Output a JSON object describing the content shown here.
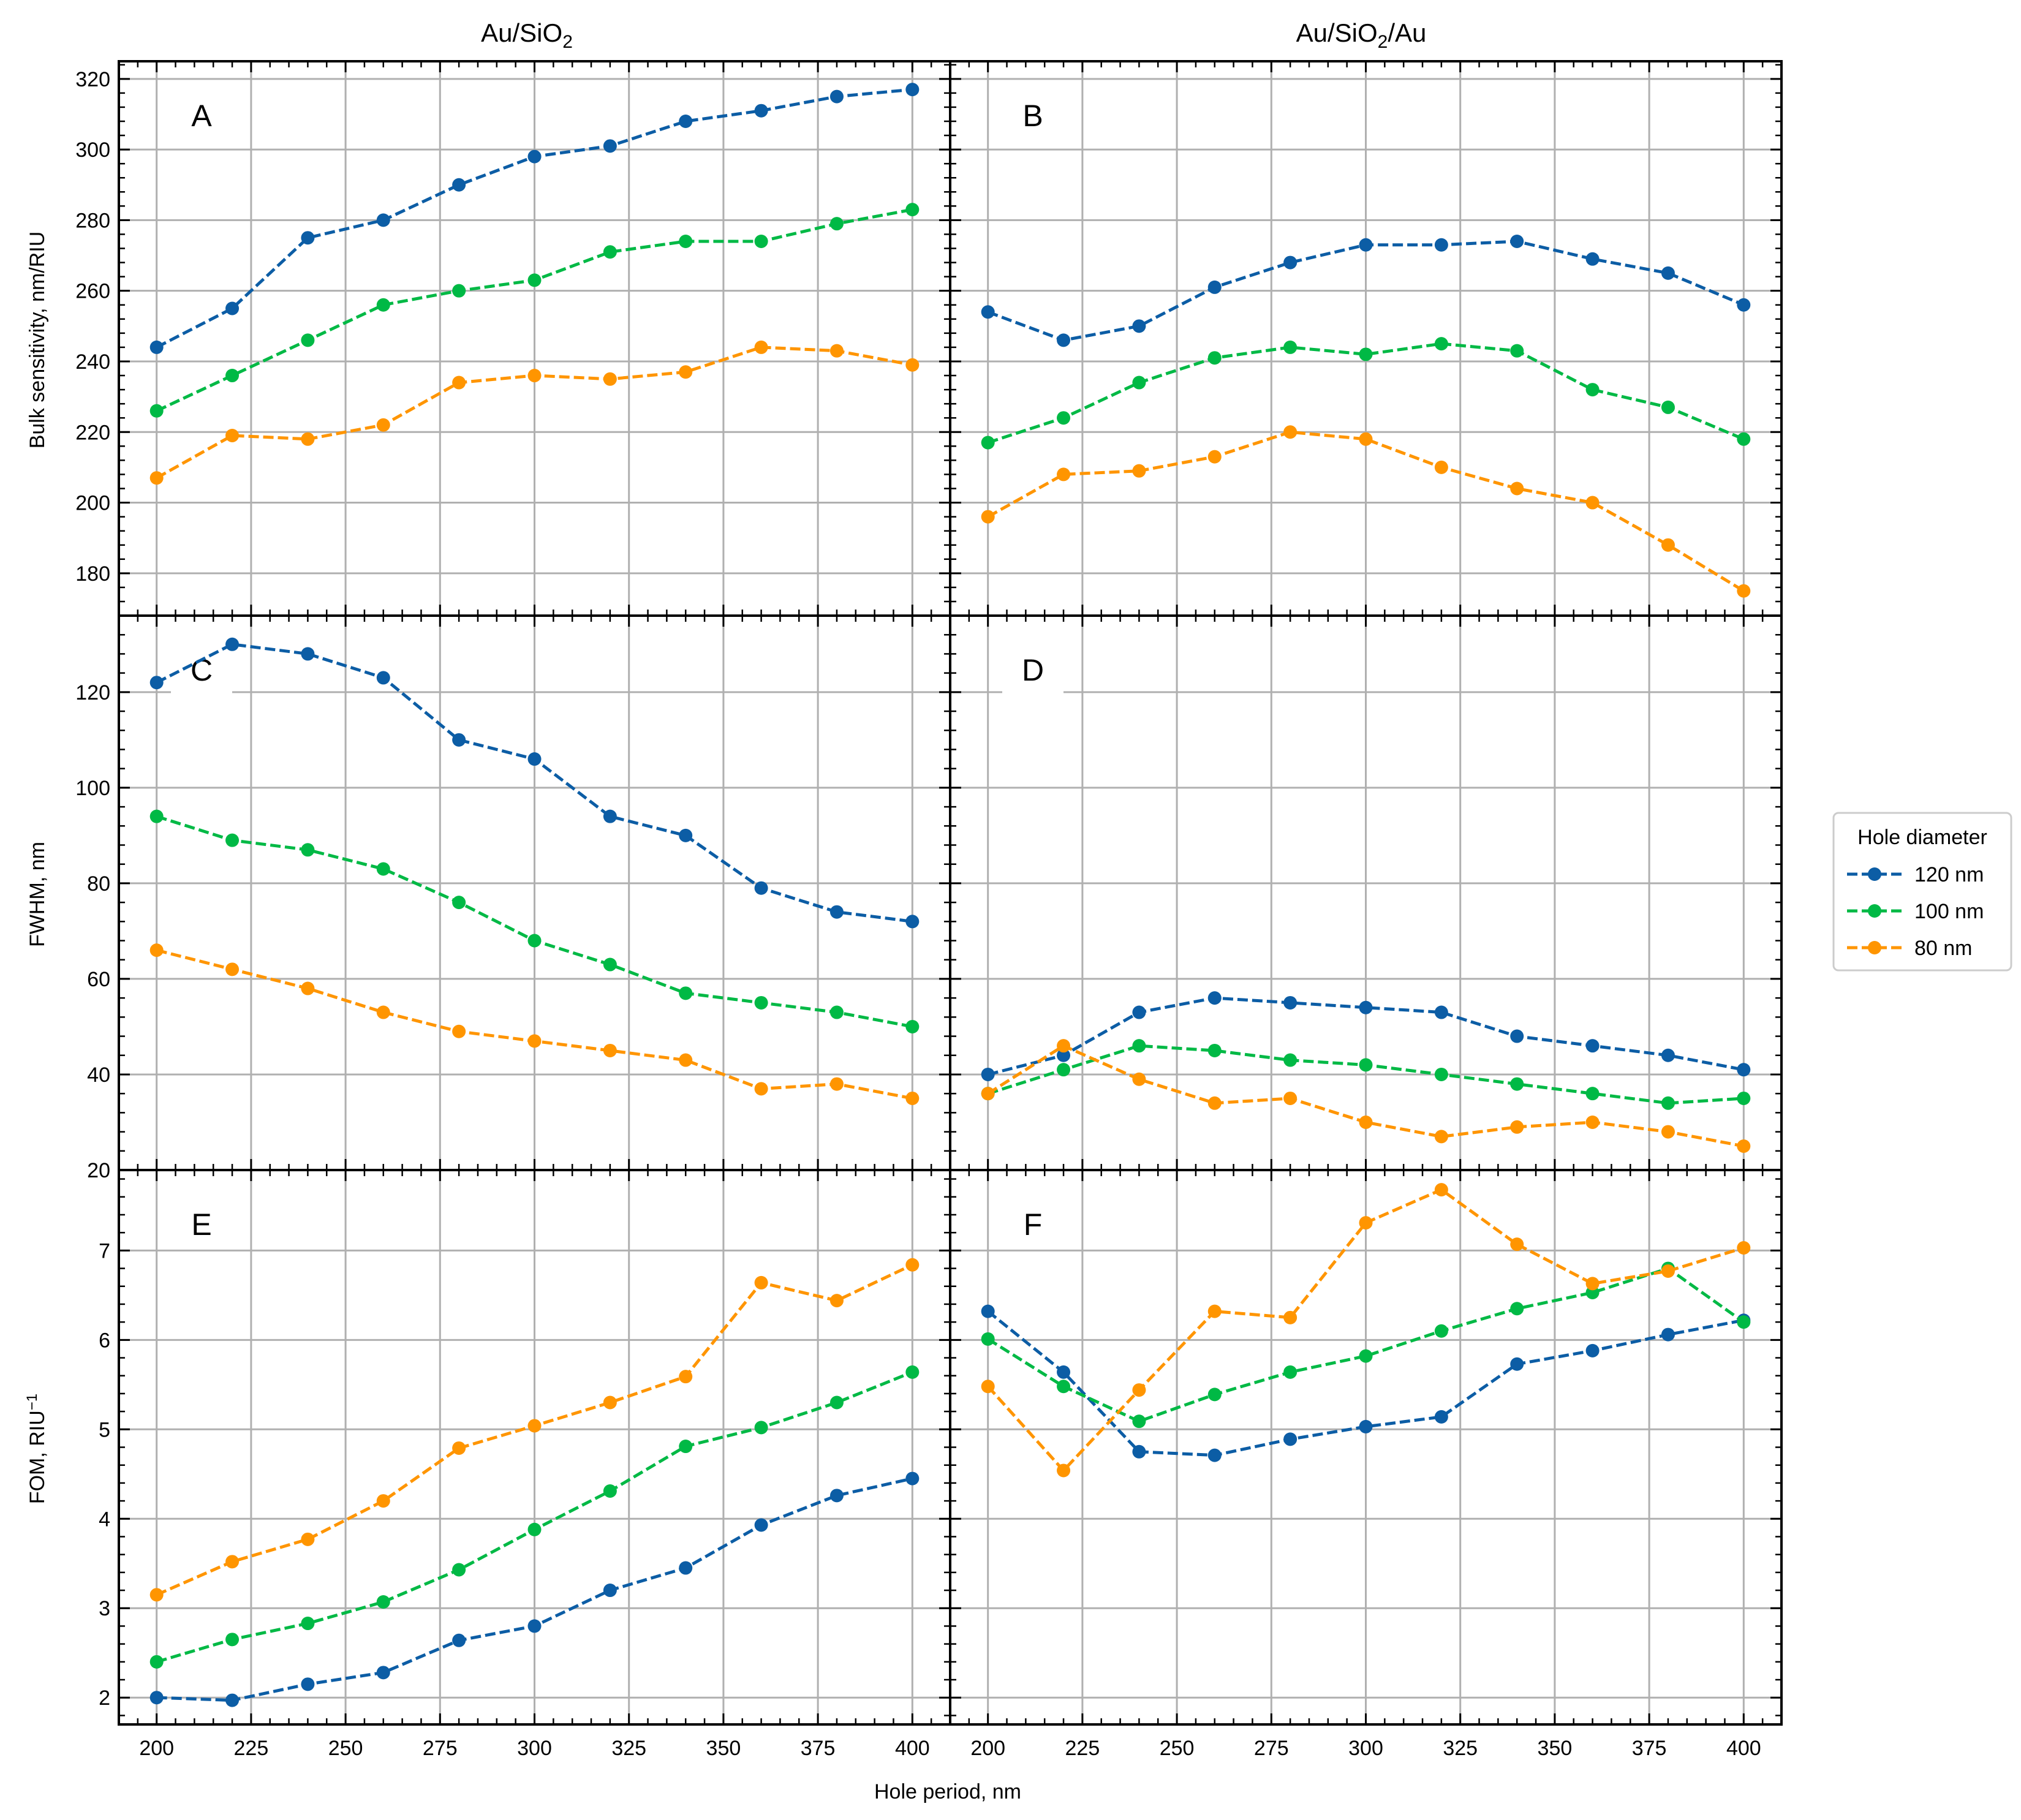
{
  "figure": {
    "xlabel": "Hole period, nm",
    "column_titles": [
      {
        "base": "Au/SiO",
        "sub": "2",
        "tail": ""
      },
      {
        "base": "Au/SiO",
        "sub": "2",
        "tail": "/Au"
      }
    ],
    "row_labels": [
      {
        "base": "Bulk sensitivity, nm/RIU",
        "sup": ""
      },
      {
        "base": "FWHM, nm",
        "sup": ""
      },
      {
        "base": "FOM, RIU",
        "sup": "−1"
      }
    ],
    "legend": {
      "title": "Hole diameter",
      "entries": [
        "120 nm",
        "100 nm",
        "80 nm"
      ],
      "colors": [
        "#0C5DA5",
        "#00B945",
        "#FF9500"
      ]
    }
  },
  "chart_data": [
    {
      "type": "line",
      "panel": "A",
      "title": "Au/SiO2",
      "xlabel": "",
      "ylabel": "Bulk sensitivity, nm/RIU",
      "x": [
        200,
        220,
        240,
        260,
        280,
        300,
        320,
        340,
        360,
        380,
        400
      ],
      "xlim": [
        190,
        410
      ],
      "xticks": [
        200,
        225,
        250,
        275,
        300,
        325,
        350,
        375,
        400
      ],
      "ylim": [
        168,
        325
      ],
      "yticks": [
        180,
        200,
        220,
        240,
        260,
        280,
        300,
        320
      ],
      "grid": true,
      "series": [
        {
          "name": "120 nm",
          "values": [
            244,
            255,
            275,
            280,
            290,
            298,
            301,
            308,
            311,
            315,
            317
          ]
        },
        {
          "name": "100 nm",
          "values": [
            226,
            236,
            246,
            256,
            260,
            263,
            271,
            274,
            274,
            279,
            283
          ]
        },
        {
          "name": "80 nm",
          "values": [
            207,
            219,
            218,
            222,
            234,
            236,
            235,
            237,
            244,
            243,
            239
          ]
        }
      ]
    },
    {
      "type": "line",
      "panel": "B",
      "title": "Au/SiO2/Au",
      "xlabel": "",
      "ylabel": "",
      "x": [
        200,
        220,
        240,
        260,
        280,
        300,
        320,
        340,
        360,
        380,
        400
      ],
      "xlim": [
        190,
        410
      ],
      "xticks": [
        200,
        225,
        250,
        275,
        300,
        325,
        350,
        375,
        400
      ],
      "ylim": [
        168,
        325
      ],
      "yticks": [
        180,
        200,
        220,
        240,
        260,
        280,
        300,
        320
      ],
      "grid": true,
      "series": [
        {
          "name": "120 nm",
          "values": [
            254,
            246,
            250,
            261,
            268,
            273,
            273,
            274,
            269,
            265,
            256
          ]
        },
        {
          "name": "100 nm",
          "values": [
            217,
            224,
            234,
            241,
            244,
            242,
            245,
            243,
            232,
            227,
            218
          ]
        },
        {
          "name": "80 nm",
          "values": [
            196,
            208,
            209,
            213,
            220,
            218,
            210,
            204,
            200,
            188,
            175
          ]
        }
      ]
    },
    {
      "type": "line",
      "panel": "C",
      "title": "",
      "xlabel": "",
      "ylabel": "FWHM, nm",
      "x": [
        200,
        220,
        240,
        260,
        280,
        300,
        320,
        340,
        360,
        380,
        400
      ],
      "xlim": [
        190,
        410
      ],
      "xticks": [
        200,
        225,
        250,
        275,
        300,
        325,
        350,
        375,
        400
      ],
      "ylim": [
        20,
        136
      ],
      "yticks": [
        20,
        40,
        60,
        80,
        100,
        120
      ],
      "grid": true,
      "series": [
        {
          "name": "120 nm",
          "values": [
            122,
            130,
            128,
            123,
            110,
            106,
            94,
            90,
            79,
            74,
            72
          ]
        },
        {
          "name": "100 nm",
          "values": [
            94,
            89,
            87,
            83,
            76,
            68,
            63,
            57,
            55,
            53,
            50
          ]
        },
        {
          "name": "80 nm",
          "values": [
            66,
            62,
            58,
            53,
            49,
            47,
            45,
            43,
            37,
            38,
            35
          ]
        }
      ]
    },
    {
      "type": "line",
      "panel": "D",
      "title": "",
      "xlabel": "",
      "ylabel": "",
      "x": [
        200,
        220,
        240,
        260,
        280,
        300,
        320,
        340,
        360,
        380,
        400
      ],
      "xlim": [
        190,
        410
      ],
      "xticks": [
        200,
        225,
        250,
        275,
        300,
        325,
        350,
        375,
        400
      ],
      "ylim": [
        20,
        136
      ],
      "yticks": [
        20,
        40,
        60,
        80,
        100,
        120
      ],
      "grid": true,
      "series": [
        {
          "name": "120 nm",
          "values": [
            40,
            44,
            53,
            56,
            55,
            54,
            53,
            48,
            46,
            44,
            41
          ]
        },
        {
          "name": "100 nm",
          "values": [
            36,
            41,
            46,
            45,
            43,
            42,
            40,
            38,
            36,
            34,
            35
          ]
        },
        {
          "name": "80 nm",
          "values": [
            36,
            46,
            39,
            34,
            35,
            30,
            27,
            29,
            30,
            28,
            25
          ]
        }
      ]
    },
    {
      "type": "line",
      "panel": "E",
      "title": "",
      "xlabel": "Hole period, nm",
      "ylabel": "FOM, RIU−1",
      "x": [
        200,
        220,
        240,
        260,
        280,
        300,
        320,
        340,
        360,
        380,
        400
      ],
      "xlim": [
        190,
        410
      ],
      "xticks": [
        200,
        225,
        250,
        275,
        300,
        325,
        350,
        375,
        400
      ],
      "ylim": [
        1.7,
        7.9
      ],
      "yticks": [
        2,
        3,
        4,
        5,
        6,
        7
      ],
      "grid": true,
      "series": [
        {
          "name": "120 nm",
          "values": [
            2.0,
            1.97,
            2.15,
            2.28,
            2.64,
            2.8,
            3.2,
            3.45,
            3.93,
            4.26,
            4.45
          ]
        },
        {
          "name": "100 nm",
          "values": [
            2.4,
            2.65,
            2.83,
            3.07,
            3.43,
            3.88,
            4.31,
            4.81,
            5.02,
            5.3,
            5.64
          ]
        },
        {
          "name": "80 nm",
          "values": [
            3.15,
            3.52,
            3.77,
            4.2,
            4.79,
            5.04,
            5.3,
            5.59,
            6.64,
            6.44,
            6.84
          ]
        }
      ]
    },
    {
      "type": "line",
      "panel": "F",
      "title": "",
      "xlabel": "Hole period, nm",
      "ylabel": "",
      "x": [
        200,
        220,
        240,
        260,
        280,
        300,
        320,
        340,
        360,
        380,
        400
      ],
      "xlim": [
        190,
        410
      ],
      "xticks": [
        200,
        225,
        250,
        275,
        300,
        325,
        350,
        375,
        400
      ],
      "ylim": [
        1.7,
        7.9
      ],
      "yticks": [
        2,
        3,
        4,
        5,
        6,
        7
      ],
      "grid": true,
      "series": [
        {
          "name": "120 nm",
          "values": [
            6.32,
            5.64,
            4.75,
            4.71,
            4.89,
            5.03,
            5.14,
            5.73,
            5.88,
            6.06,
            6.22
          ]
        },
        {
          "name": "100 nm",
          "values": [
            6.01,
            5.48,
            5.09,
            5.39,
            5.64,
            5.82,
            6.1,
            6.35,
            6.53,
            6.8,
            6.2
          ]
        },
        {
          "name": "80 nm",
          "values": [
            5.48,
            4.54,
            5.44,
            6.32,
            6.25,
            7.31,
            7.68,
            7.07,
            6.63,
            6.77,
            7.03
          ]
        }
      ]
    }
  ]
}
